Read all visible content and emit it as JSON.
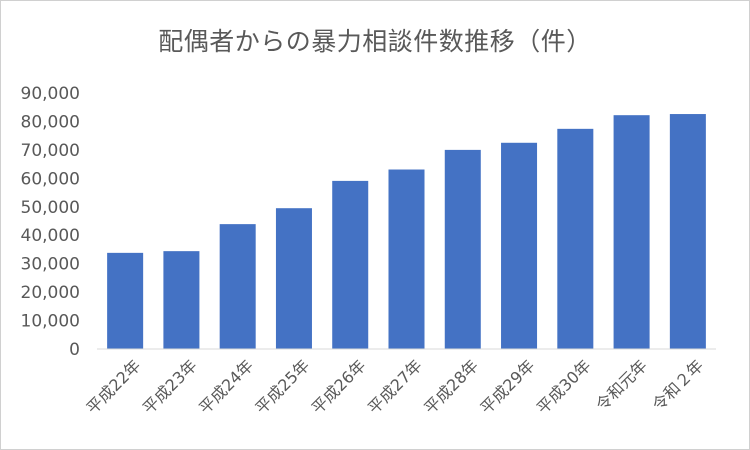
{
  "chart_data": {
    "type": "bar",
    "title": "配偶者からの暴力相談件数推移（件）",
    "xlabel": "",
    "ylabel": "",
    "categories": [
      "平成22年",
      "平成23年",
      "平成24年",
      "平成25年",
      "平成26年",
      "平成27年",
      "平成28年",
      "平成29年",
      "平成30年",
      "令和元年",
      "令和２年"
    ],
    "values": [
      33800,
      34400,
      43900,
      49500,
      59100,
      63100,
      70000,
      72500,
      77400,
      82200,
      82600
    ],
    "ylim": [
      0,
      90000
    ],
    "yticks": [
      "0",
      "10,000",
      "20,000",
      "30,000",
      "40,000",
      "50,000",
      "60,000",
      "70,000",
      "80,000",
      "90,000"
    ],
    "grid": false,
    "legend": "none",
    "colors": {
      "bar": "#4472C4",
      "axis": "#D9D9D9",
      "text": "#595959"
    }
  }
}
